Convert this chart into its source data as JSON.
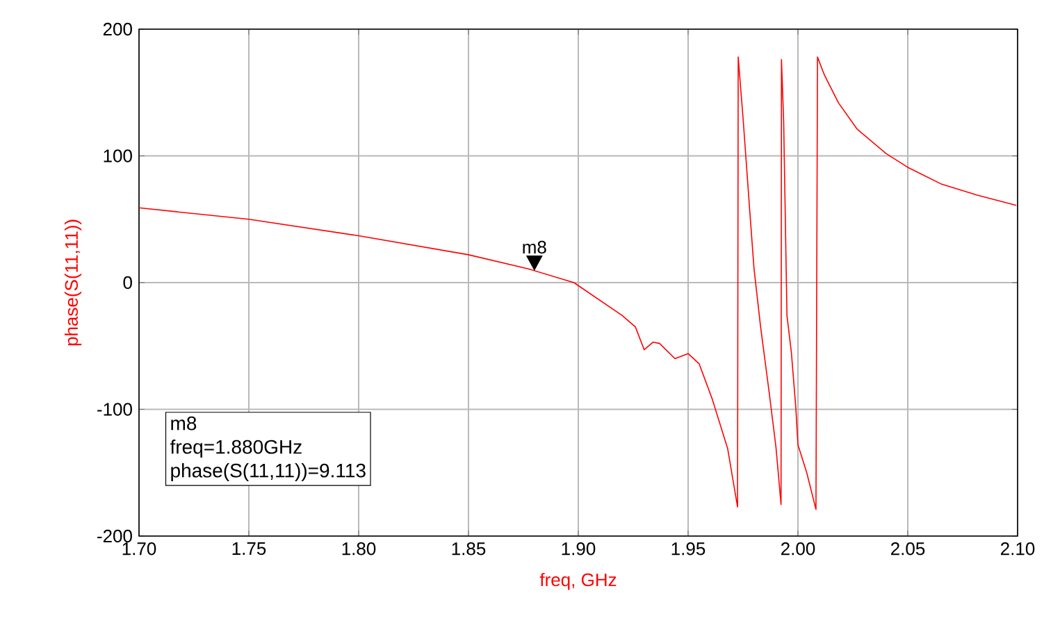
{
  "chart_data": {
    "type": "line",
    "xlabel": "freq, GHz",
    "ylabel": "phase(S(11,11))",
    "xlim": [
      1.7,
      2.1
    ],
    "ylim": [
      -200,
      200
    ],
    "xticks": [
      {
        "value": 1.7,
        "label": "1.70"
      },
      {
        "value": 1.75,
        "label": "1.75"
      },
      {
        "value": 1.8,
        "label": "1.80"
      },
      {
        "value": 1.85,
        "label": "1.85"
      },
      {
        "value": 1.9,
        "label": "1.90"
      },
      {
        "value": 1.95,
        "label": "1.95"
      },
      {
        "value": 2.0,
        "label": "2.00"
      },
      {
        "value": 2.05,
        "label": "2.05"
      },
      {
        "value": 2.1,
        "label": "2.10"
      }
    ],
    "yticks": [
      -200,
      -100,
      0,
      100,
      200
    ],
    "grid": true,
    "marker": "none",
    "line_style": "solid",
    "series": [
      {
        "color": "#ff0000",
        "x": [
          1.7,
          1.75,
          1.8,
          1.85,
          1.877,
          1.898,
          1.92,
          1.926,
          1.93,
          1.934,
          1.937,
          1.944,
          1.95,
          1.955,
          1.961,
          1.968,
          1.9725,
          1.9728,
          1.975,
          1.978,
          1.98,
          1.983,
          1.987,
          1.99,
          1.9923,
          1.9925,
          1.9935,
          1.9945,
          1.995,
          1.997,
          1.999,
          2.0,
          2.004,
          2.0082,
          2.0089,
          2.012,
          2.0184,
          2.027,
          2.04,
          2.05,
          2.065,
          2.0816,
          2.0994
        ],
        "values": [
          59,
          50,
          37,
          22,
          11,
          0,
          -26,
          -35,
          -53,
          -47,
          -48,
          -60,
          -56,
          -64,
          -92,
          -131,
          -177,
          178,
          130,
          58,
          11,
          -35,
          -88,
          -130,
          -175,
          176,
          127,
          25,
          -26,
          -55,
          -98,
          -128,
          -150,
          -179,
          178,
          164,
          142,
          121,
          102,
          91,
          78,
          69,
          61
        ]
      }
    ],
    "annotations": [
      {
        "text": "m8",
        "x": 1.88,
        "y": 9.113
      },
      "m8",
      "freq=1.880GHz",
      "phase(S(11,11))=9.113"
    ]
  }
}
